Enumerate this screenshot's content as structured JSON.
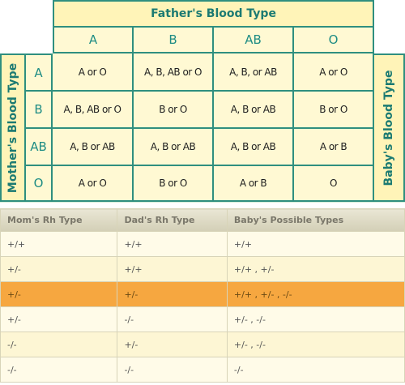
{
  "grid": {
    "father_title": "Father's Blood Type",
    "mother_title": "Mother's Blood Type",
    "baby_title": "Baby's Blood Type",
    "columns": [
      "A",
      "B",
      "AB",
      "O"
    ],
    "rows": [
      {
        "type": "A",
        "cells": [
          "A or O",
          "A, B, AB or O",
          "A, B, or AB",
          "A or O"
        ]
      },
      {
        "type": "B",
        "cells": [
          "A, B, AB or O",
          "B or O",
          "A, B or AB",
          "B or O"
        ]
      },
      {
        "type": "AB",
        "cells": [
          "A, B or AB",
          "A, B or AB",
          "A, B or AB",
          "A or B"
        ]
      },
      {
        "type": "O",
        "cells": [
          "A or O",
          "B or O",
          "A or B",
          "O"
        ]
      }
    ]
  },
  "rh_table": {
    "headers": [
      "Mom's Rh Type",
      "Dad's Rh Type",
      "Baby's Possible Types"
    ],
    "rows": [
      [
        "+/+",
        "+/+",
        "+/+"
      ],
      [
        "+/-",
        "+/+",
        "+/+ , +/-"
      ],
      [
        "+/-",
        "+/-",
        "+/+ , +/- , -/-"
      ],
      [
        "+/-",
        "-/-",
        "+/- , -/-"
      ],
      [
        "-/-",
        "+/-",
        "+/- , -/-"
      ],
      [
        "-/-",
        "-/-",
        "-/-"
      ]
    ],
    "highlight_color": "#f6a740"
  }
}
